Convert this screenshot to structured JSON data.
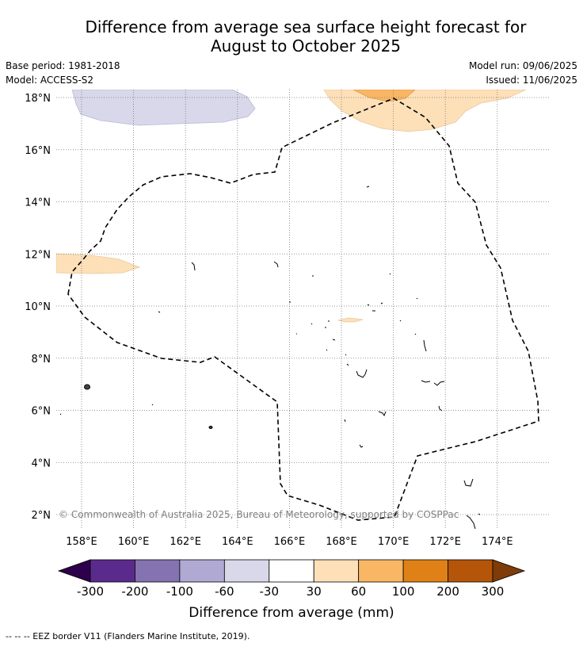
{
  "title": {
    "line1": "Difference from average sea surface height forecast for",
    "line2": "August to October 2025"
  },
  "meta": {
    "base_period": "Base period: 1981-2018",
    "model": "Model: ACCESS-S2",
    "model_run": "Model run: 09/06/2025",
    "issued": "Issued: 11/06/2025"
  },
  "map": {
    "lon_range": [
      157.0,
      176.0
    ],
    "lat_range": [
      1.4,
      18.3
    ],
    "lon_ticks": [
      {
        "value": 158,
        "label": "158°E"
      },
      {
        "value": 160,
        "label": "160°E"
      },
      {
        "value": 162,
        "label": "162°E"
      },
      {
        "value": 164,
        "label": "164°E"
      },
      {
        "value": 166,
        "label": "166°E"
      },
      {
        "value": 168,
        "label": "168°E"
      },
      {
        "value": 170,
        "label": "170°E"
      },
      {
        "value": 172,
        "label": "172°E"
      },
      {
        "value": 174,
        "label": "174°E"
      }
    ],
    "lat_ticks": [
      {
        "value": 2,
        "label": "2°N"
      },
      {
        "value": 4,
        "label": "4°N"
      },
      {
        "value": 6,
        "label": "6°N"
      },
      {
        "value": 8,
        "label": "8°N"
      },
      {
        "value": 10,
        "label": "10°N"
      },
      {
        "value": 12,
        "label": "12°N"
      },
      {
        "value": 14,
        "label": "14°N"
      },
      {
        "value": 16,
        "label": "16°N"
      },
      {
        "value": 18,
        "label": "18°N"
      }
    ],
    "copyright": "© Commonwealth of Australia 2025, Bureau of Meteorology, supported by COSPPac"
  },
  "colorbar": {
    "title": "Difference from average (mm)",
    "boundaries": [
      "-300",
      "-200",
      "-100",
      "-60",
      "-30",
      "30",
      "60",
      "100",
      "200",
      "300"
    ],
    "colors": [
      "#5a2b8c",
      "#8473b0",
      "#b0a9d3",
      "#d8d8ea",
      "#ffffff",
      "#fde0b8",
      "#f9b664",
      "#e08118",
      "#b45509"
    ],
    "under_color": "#2e004b",
    "over_color": "#7f3b08"
  },
  "footnote": "--  --  -- EEZ border V11 (Flanders Marine Institute, 2019)."
}
